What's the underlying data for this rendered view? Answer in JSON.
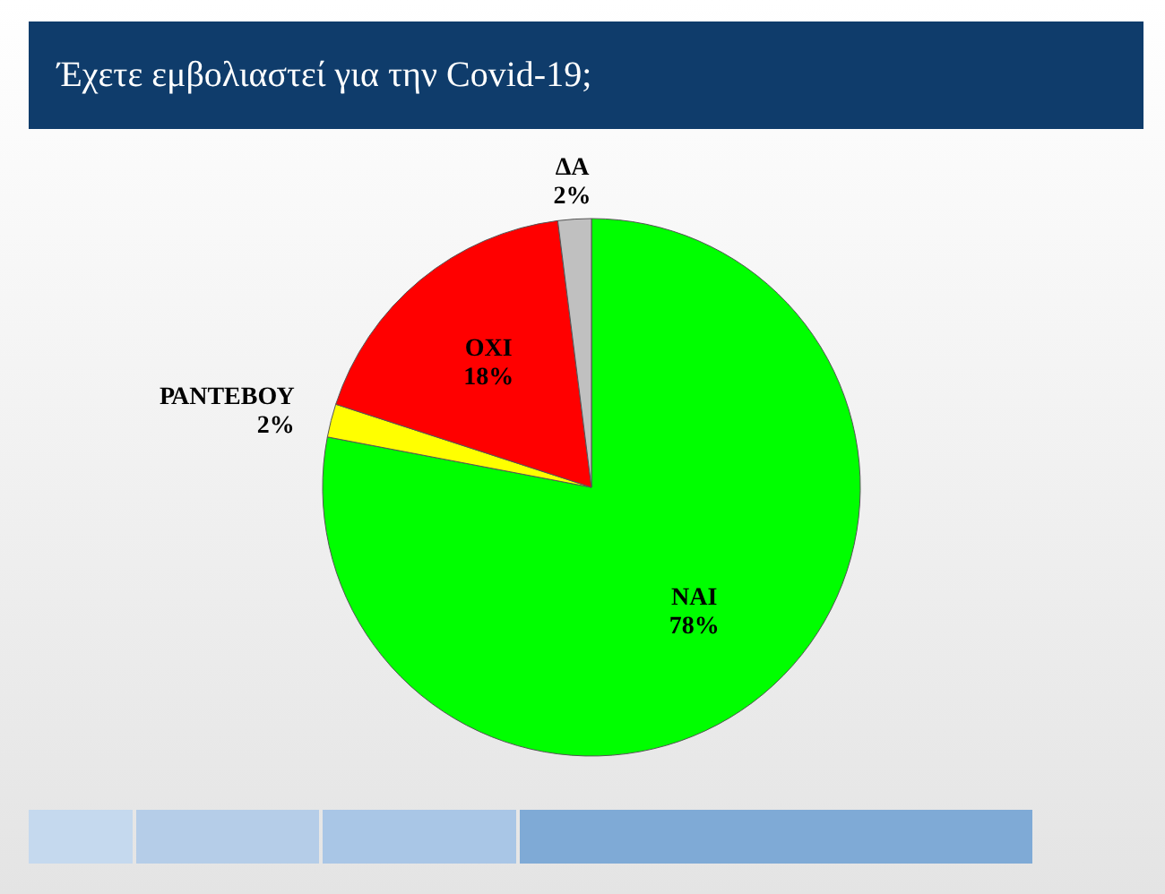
{
  "chart_data": {
    "type": "pie",
    "title": "Έχετε εμβολιαστεί για την Covid-19;",
    "categories": [
      "ΝΑΙ",
      "ΡΑΝΤΕΒΟΥ",
      "ΟΧΙ",
      "ΔΑ"
    ],
    "values": [
      78,
      2,
      18,
      2
    ],
    "colors": [
      "#00ff00",
      "#ffff00",
      "#ff0000",
      "#c0c0c0"
    ],
    "value_labels": [
      "78%",
      "2%",
      "18%",
      "2%"
    ]
  }
}
